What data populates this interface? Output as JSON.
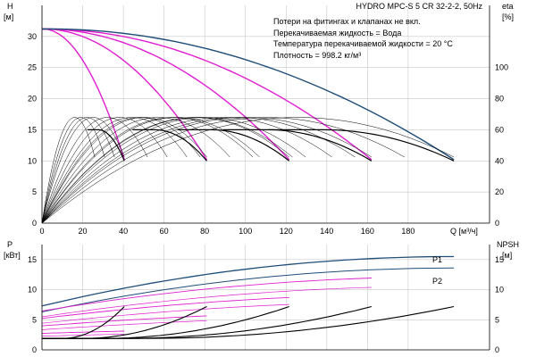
{
  "chart_data": [
    {
      "type": "line",
      "title": "HYDRO MPC-S 5 CR 32-2-2, 50Hz",
      "annotations": [
        "Потери на фитингах и клапанах не вкл.",
        "Перекачиваемая жидкость = Вода",
        "Температура перекачиваемой жидкости = 20 °C",
        "Плотность = 998.2 кг/м³"
      ],
      "ylabel": "H",
      "yunit": "[м]",
      "y2label": "eta",
      "y2unit": "[%]",
      "xlabel": "Q [м³/ч]",
      "xlim": [
        0,
        220
      ],
      "ylim": [
        0,
        35
      ],
      "y2lim": [
        0,
        140
      ],
      "xticks": [
        "0",
        "20",
        "40",
        "60",
        "80",
        "100",
        "120",
        "140",
        "160",
        "180"
      ],
      "yticks": [
        "0",
        "5",
        "10",
        "15",
        "20",
        "25",
        "30"
      ],
      "y2ticks": [
        "0",
        "20",
        "40",
        "60",
        "80",
        "100"
      ],
      "grid": true,
      "colors": {
        "head_max": "#1f4e79",
        "head_reduced": "#e020d0",
        "efficiency": "#000000",
        "grid": "#c8c8c8"
      },
      "pump_counts": [
        1,
        2,
        3,
        4,
        5
      ],
      "pump_q_max": 40.5,
      "series_head_max": {
        "shutoff": 31.2,
        "peak_q": 13.0,
        "peak_h": 31.4,
        "end_h": 11.2
      },
      "series_head_reduced": {
        "shutoff": 31.2,
        "end_h": 10.2
      },
      "series_efficiency": {
        "peak_pct": 60,
        "peak_q_frac": 0.62,
        "end_pct": 40,
        "bep_pct": 68
      }
    },
    {
      "type": "line",
      "ylabel": "P",
      "yunit": "[кВт]",
      "y2label": "NPSH",
      "y2unit": "[м]",
      "xlim": [
        0,
        220
      ],
      "ylim": [
        0,
        17.5
      ],
      "y2lim": [
        0,
        17.5
      ],
      "yticks": [
        "0",
        "5",
        "10",
        "15"
      ],
      "y2ticks": [
        "0",
        "5",
        "10",
        "15"
      ],
      "grid": true,
      "series": [
        {
          "name": "P1",
          "start": 7.3,
          "end": 15.5
        },
        {
          "name": "P2",
          "start": 6.3,
          "end": 13.6
        }
      ],
      "npsh": {
        "base": 1.9,
        "end": 7.2
      },
      "colors": {
        "p1": "#1f4e79",
        "p2": "#1f4e79",
        "p_reduced": "#e020d0",
        "npsh": "#000000"
      }
    }
  ]
}
